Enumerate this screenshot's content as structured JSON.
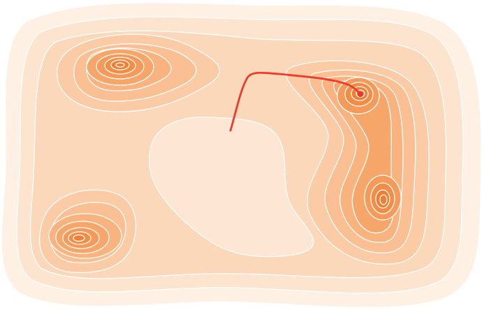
{
  "figure": {
    "description_type": "optimization-landscape",
    "colors": {
      "background": "#ffffff",
      "outer_band": "#fef1e4",
      "deep_basin": "#f07f34",
      "contour_lines": "#ffffff",
      "trajectory": "#ee3b2c"
    },
    "basins": [
      {
        "name": "top-left-basin",
        "levels": 9
      },
      {
        "name": "bottom-left-basin",
        "levels": 9
      },
      {
        "name": "top-right-basin",
        "levels": 9
      },
      {
        "name": "bottom-right-basin",
        "levels": 9
      }
    ],
    "path": {
      "name": "optimization-trajectory",
      "ends_at": "top-right-basin"
    }
  }
}
